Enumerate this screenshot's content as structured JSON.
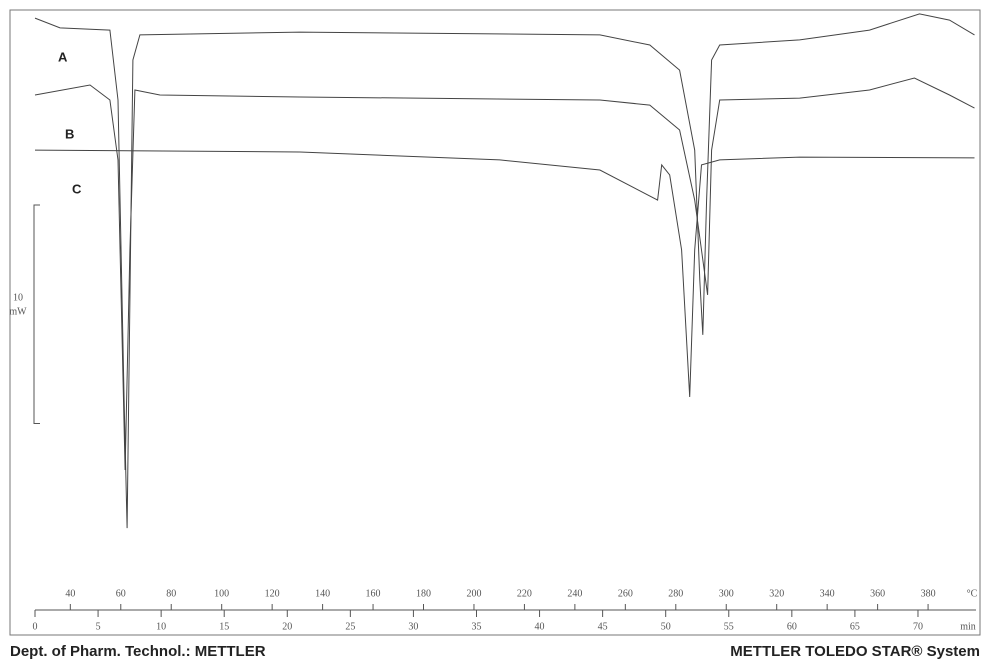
{
  "chart_data": {
    "type": "line",
    "xlabel": "°C",
    "x2label": "min",
    "xlim": [
      26,
      399
    ],
    "xticks": [
      40,
      60,
      80,
      100,
      120,
      140,
      160,
      180,
      200,
      220,
      240,
      260,
      280,
      300,
      320,
      340,
      360,
      380
    ],
    "x2lim": [
      0,
      74.6
    ],
    "x2ticks": [
      0,
      5,
      10,
      15,
      20,
      25,
      30,
      35,
      40,
      45,
      50,
      55,
      60,
      65,
      70
    ],
    "ylim": [
      -27,
      0
    ],
    "scale_bar": {
      "value": 10,
      "label": "10",
      "unit": "mW"
    },
    "series": [
      {
        "name": "A",
        "color": "#444444",
        "x": [
          26.0,
          35.9,
          55.7,
          58.9,
          61.3,
          62.5,
          63.6,
          64.8,
          67.6,
          131.0,
          249.9,
          269.7,
          281.5,
          287.5,
          289.5,
          290.7,
          292.2,
          294.2,
          297.4,
          329.1,
          356.8,
          376.6,
          388.5,
          398.4
        ],
        "values": [
          -0.37,
          -0.82,
          -0.92,
          -4.12,
          -17.85,
          -23.71,
          -13.27,
          -2.29,
          -1.14,
          -1.01,
          -1.14,
          -1.6,
          -2.75,
          -6.41,
          -12.36,
          -14.87,
          -8.7,
          -2.29,
          -1.6,
          -1.37,
          -0.92,
          -0.18,
          -0.46,
          -1.14
        ]
      },
      {
        "name": "B",
        "color": "#444444",
        "x": [
          26,
          47.8,
          55.7,
          58.9,
          61.7,
          63.6,
          65.6,
          75.5,
          131,
          249.9,
          269.7,
          281.5,
          287.5,
          292.6,
          294.2,
          297.4,
          329.1,
          356.8,
          374.6,
          388.5,
          398.4
        ],
        "values": [
          -3.89,
          -3.43,
          -4.12,
          -6.86,
          -21.05,
          -10.98,
          -3.66,
          -3.89,
          -3.98,
          -4.12,
          -4.35,
          -5.49,
          -8.7,
          -13.04,
          -6.41,
          -4.12,
          -4.03,
          -3.66,
          -3.11,
          -3.89,
          -4.49
        ]
      },
      {
        "name": "C",
        "color": "#444444",
        "x": [
          26,
          131,
          210.2,
          249.9,
          272.8,
          274.4,
          277.6,
          282.3,
          285.5,
          287.5,
          290.2,
          297.4,
          329.1,
          398.4
        ],
        "values": [
          -6.41,
          -6.5,
          -6.86,
          -7.32,
          -8.7,
          -7.09,
          -7.55,
          -10.98,
          -17.71,
          -10.98,
          -7.09,
          -6.86,
          -6.73,
          -6.77
        ]
      }
    ],
    "footer_left": "Dept. of  Pharm. Technol.: METTLER",
    "footer_right": "METTLER TOLEDO STAR® System"
  }
}
